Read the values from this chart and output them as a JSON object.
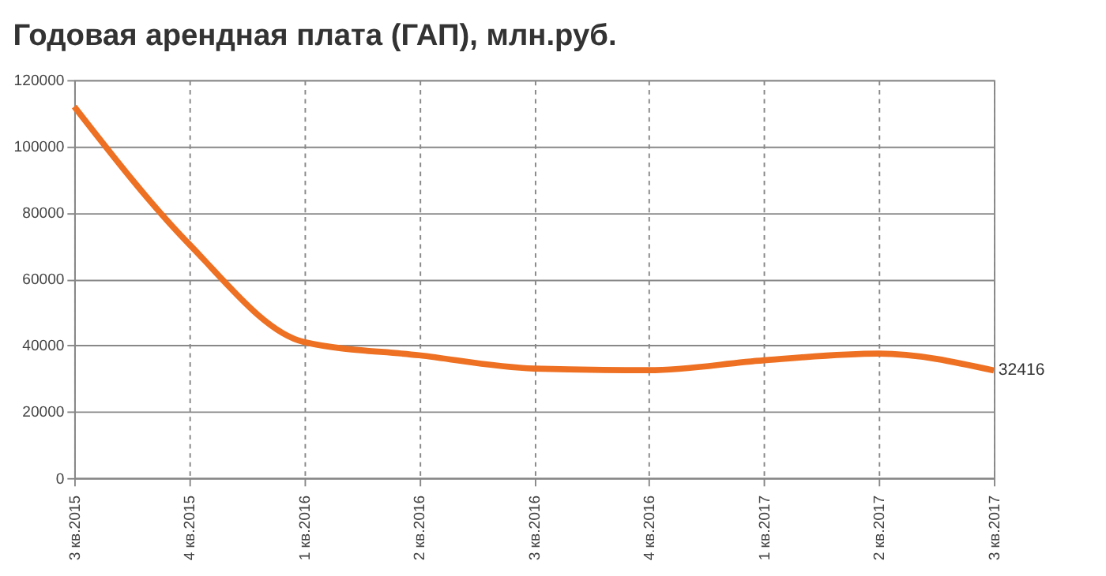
{
  "chart_data": {
    "type": "line",
    "title": "Годовая арендная плата (ГАП), млн.руб.",
    "categories": [
      "3 кв.2015",
      "4 кв.2015",
      "1 кв.2016",
      "2 кв.2016",
      "3 кв.2016",
      "4 кв.2016",
      "1 кв.2017",
      "2 кв.2017",
      "3 кв.2017"
    ],
    "series": [
      {
        "color": "#ee7022",
        "values": [
          112000,
          70500,
          41000,
          37000,
          33000,
          32500,
          35500,
          37500,
          32416
        ],
        "value_labels": [
          null,
          null,
          null,
          null,
          null,
          null,
          null,
          null,
          "32416"
        ]
      }
    ],
    "ylim": [
      0,
      120000
    ],
    "yticks": [
      0,
      20000,
      40000,
      60000,
      80000,
      100000,
      120000
    ],
    "grid": true,
    "marker": "none",
    "line_style": "solid"
  }
}
